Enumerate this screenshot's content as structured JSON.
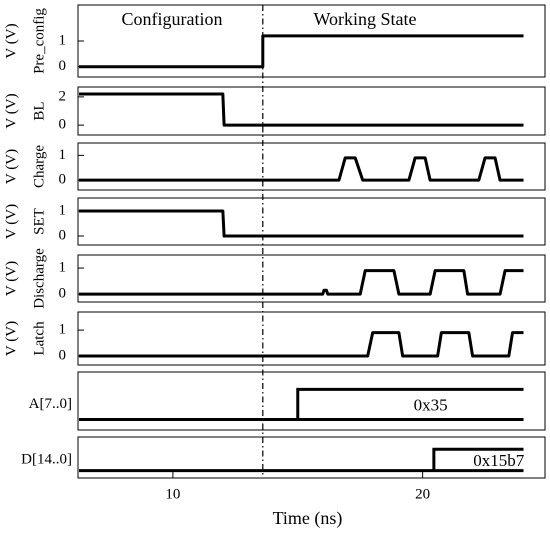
{
  "chart_data": [
    {
      "type": "line",
      "ylabel": "V (V)",
      "signal": "Pre_config",
      "annotations": [
        "Configuration",
        "Working State"
      ],
      "marker_x": 13.6,
      "x": [
        6.24,
        13.6,
        13.6,
        24.04
      ],
      "values": [
        0,
        0,
        1.2,
        1.2
      ],
      "xlim": [
        6.2,
        24.9
      ],
      "ylim": [
        -0.4,
        2.4
      ],
      "yticks": [
        0,
        1
      ],
      "color": "#000000"
    },
    {
      "type": "line",
      "ylabel": "V (V)",
      "signal": "BL",
      "x": [
        6.24,
        12.0,
        12.05,
        24.04
      ],
      "values": [
        2.2,
        2.2,
        0,
        0
      ],
      "xlim": [
        6.2,
        24.9
      ],
      "ylim": [
        -0.7,
        2.7
      ],
      "yticks": [
        0,
        2
      ],
      "color": "#000000"
    },
    {
      "type": "line",
      "ylabel": "V (V)",
      "signal": "Charge",
      "x": [
        6.24,
        16.65,
        16.9,
        17.3,
        17.6,
        19.45,
        19.7,
        20.1,
        20.3,
        22.25,
        22.5,
        22.9,
        23.1,
        24.04
      ],
      "values": [
        0,
        0,
        0.9,
        0.9,
        0,
        0,
        0.9,
        0.9,
        0,
        0,
        0.9,
        0.9,
        0,
        0
      ],
      "xlim": [
        6.2,
        24.9
      ],
      "ylim": [
        -0.4,
        1.5
      ],
      "yticks": [
        0,
        1
      ],
      "color": "#000000"
    },
    {
      "type": "line",
      "ylabel": "V (V)",
      "signal": "SET",
      "x": [
        6.24,
        12.0,
        12.05,
        24.04
      ],
      "values": [
        1,
        1,
        0,
        0
      ],
      "xlim": [
        6.2,
        24.9
      ],
      "ylim": [
        -0.36,
        1.52
      ],
      "yticks": [
        0,
        1
      ],
      "color": "#000000"
    },
    {
      "type": "line",
      "ylabel": "V (V)",
      "signal": "Discharge",
      "x": [
        6.24,
        16.0,
        16.05,
        16.15,
        16.2,
        17.5,
        17.7,
        18.85,
        19.05,
        20.3,
        20.5,
        21.65,
        21.8,
        23.1,
        23.3,
        24.04
      ],
      "values": [
        0,
        0,
        0.15,
        0.15,
        0,
        0,
        0.9,
        0.9,
        0,
        0,
        0.9,
        0.9,
        0,
        0,
        0.9,
        0.9
      ],
      "xlim": [
        6.2,
        24.9
      ],
      "ylim": [
        -0.3,
        1.5
      ],
      "yticks": [
        0,
        1
      ],
      "color": "#000000"
    },
    {
      "type": "line",
      "ylabel": "V (V)",
      "signal": "Latch",
      "x": [
        6.24,
        17.8,
        18.0,
        19.05,
        19.2,
        20.6,
        20.75,
        21.85,
        22.0,
        23.45,
        23.6,
        24.04
      ],
      "values": [
        0,
        0,
        0.9,
        0.9,
        0,
        0,
        0.9,
        0.9,
        0,
        0,
        0.9,
        0.9
      ],
      "xlim": [
        6.2,
        24.9
      ],
      "ylim": [
        -0.35,
        1.7
      ],
      "yticks": [
        0,
        1
      ],
      "color": "#000000"
    },
    {
      "type": "bus",
      "signal": "A[7..0]",
      "start": 6.24,
      "transition": 15.0,
      "end": 24.04,
      "value_label": "0x35",
      "xlim": [
        6.2,
        24.9
      ],
      "color": "#000000"
    },
    {
      "type": "bus",
      "signal": "D[14..0]",
      "start": 6.24,
      "transition": 20.45,
      "end": 24.04,
      "value_label": "0x15b7",
      "xlim": [
        6.2,
        24.9
      ],
      "color": "#000000",
      "xticks": [
        10,
        20
      ],
      "xlabel": "Time (ns)"
    }
  ]
}
